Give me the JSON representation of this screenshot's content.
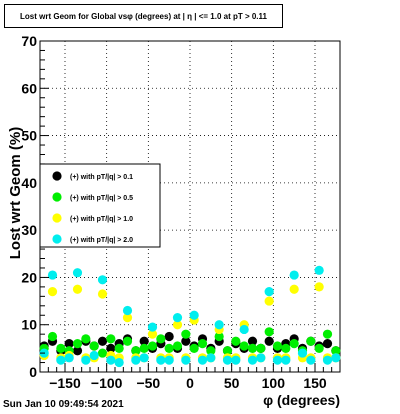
{
  "title": "Lost wrt Geom for Global vsφ (degrees) at | η | <= 1.0 at pT > 0.11",
  "timestamp": "Sun Jan 10 09:49:54 2021",
  "chart_data": {
    "type": "scatter",
    "xlabel": "φ (degrees)",
    "ylabel": "Lost wrt Geom (%)",
    "xlim": [
      -180,
      180
    ],
    "ylim": [
      0,
      70
    ],
    "grid": true,
    "legend_position": "middle-left",
    "x_ticks": [
      -150,
      -100,
      -50,
      0,
      50,
      100,
      150
    ],
    "y_ticks": [
      0,
      10,
      20,
      30,
      40,
      50,
      60,
      70
    ],
    "series": [
      {
        "name": "(+) with pT/|q| > 0.1",
        "color": "#000000",
        "x": [
          -175,
          -165,
          -155,
          -145,
          -135,
          -125,
          -115,
          -105,
          -95,
          -85,
          -75,
          -65,
          -55,
          -45,
          -35,
          -25,
          -15,
          -5,
          5,
          15,
          25,
          35,
          45,
          55,
          65,
          75,
          85,
          95,
          105,
          115,
          125,
          135,
          145,
          155,
          165,
          175
        ],
        "y": [
          5.5,
          6.5,
          4.5,
          6,
          4.5,
          6.5,
          5.5,
          6.5,
          5,
          6,
          7,
          4.5,
          6.5,
          5,
          6,
          7.5,
          5,
          6.5,
          5.5,
          7,
          5,
          6.5,
          4.5,
          6,
          5,
          6.5,
          5,
          6.5,
          5,
          6,
          7,
          5,
          6.5,
          5.5,
          6,
          4.5
        ]
      },
      {
        "name": "(+) with pT/|q| > 0.5",
        "color": "#00ee00",
        "x": [
          -175,
          -165,
          -155,
          -145,
          -135,
          -125,
          -115,
          -105,
          -95,
          -85,
          -75,
          -65,
          -55,
          -45,
          -35,
          -25,
          -15,
          -5,
          5,
          15,
          25,
          35,
          45,
          55,
          65,
          75,
          85,
          95,
          105,
          115,
          125,
          135,
          145,
          155,
          165,
          175
        ],
        "y": [
          5,
          7.5,
          5,
          4.5,
          6,
          7,
          5.5,
          4,
          7,
          5,
          6.5,
          4.5,
          5,
          5.5,
          7,
          5,
          5.5,
          8,
          5,
          6,
          4.5,
          7.5,
          4.5,
          6.5,
          5.5,
          5,
          5,
          8.5,
          5.5,
          5,
          6,
          4.5,
          6.5,
          5,
          8,
          4.5
        ]
      },
      {
        "name": "(+) with pT/|q| > 1.0",
        "color": "#ffff00",
        "x": [
          -175,
          -165,
          -155,
          -145,
          -135,
          -125,
          -115,
          -105,
          -95,
          -85,
          -75,
          -65,
          -55,
          -45,
          -35,
          -25,
          -15,
          -5,
          5,
          15,
          25,
          35,
          45,
          55,
          65,
          75,
          85,
          95,
          105,
          115,
          125,
          135,
          145,
          155,
          165,
          175
        ],
        "y": [
          3.5,
          17,
          3,
          3.5,
          17.5,
          3,
          3,
          16.5,
          3.5,
          3,
          11.5,
          3,
          3,
          8,
          3,
          3,
          10,
          3,
          11,
          3,
          3,
          9,
          3,
          3,
          10,
          3,
          3,
          15,
          3,
          3,
          17.5,
          3,
          3,
          18,
          3,
          3
        ]
      },
      {
        "name": "(+) with pT/|q| > 2.0",
        "color": "#00eeee",
        "x": [
          -175,
          -165,
          -155,
          -145,
          -135,
          -125,
          -115,
          -105,
          -95,
          -85,
          -75,
          -65,
          -55,
          -45,
          -35,
          -25,
          -15,
          -5,
          5,
          15,
          25,
          35,
          45,
          55,
          65,
          75,
          85,
          95,
          105,
          115,
          125,
          135,
          145,
          155,
          165,
          175
        ],
        "y": [
          4,
          20.5,
          2.5,
          3,
          21,
          2.5,
          3.5,
          19.5,
          2.5,
          2,
          13,
          2.5,
          3,
          9.5,
          2.5,
          2.5,
          11.5,
          2.5,
          12,
          2.5,
          3,
          10,
          2.5,
          2.5,
          9,
          2.5,
          3,
          17,
          2.5,
          2.5,
          20.5,
          4,
          2.5,
          21.5,
          2.5,
          3
        ]
      }
    ]
  }
}
